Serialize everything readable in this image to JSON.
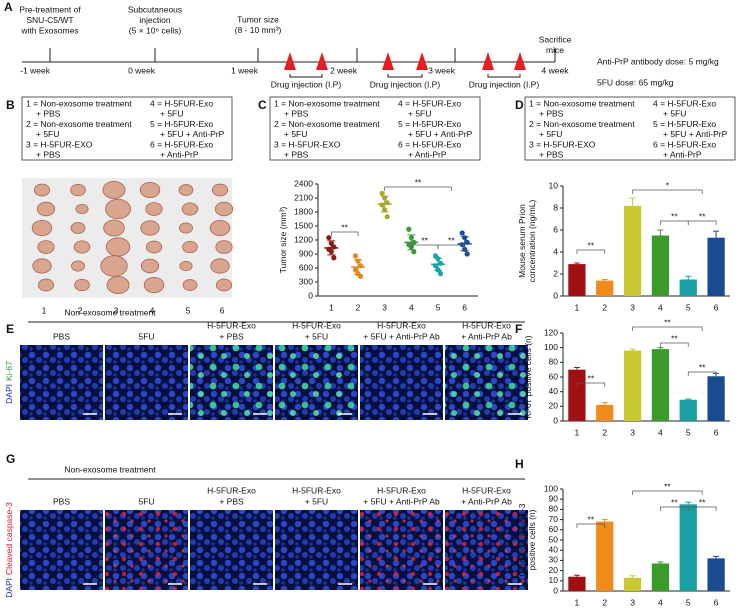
{
  "panel_labels": [
    "A",
    "B",
    "C",
    "D",
    "E",
    "F",
    "G",
    "H"
  ],
  "timeline": {
    "events": [
      [
        "Pre-treatment of",
        "SNU-C5/WT",
        "with Exosomes"
      ],
      [
        "Subcutaneous",
        "injection",
        "(5 × 10⁶ cells)"
      ],
      [
        "Tumor size",
        "(8 - 10 mm³)"
      ],
      [
        "Sacrifice",
        "mice"
      ]
    ],
    "weeks": [
      "-1 week",
      "0 week",
      "1 week",
      "2 week",
      "3 week",
      "4 week"
    ],
    "injection": "Drug injection (I.P)",
    "doses": [
      "Anti-PrP antibody dose: 5 mg/kg",
      "5FU dose: 65 mg/kg"
    ]
  },
  "groups": [
    {
      "name": "1 = Non-exosome treatment",
      "treatment": "+ PBS"
    },
    {
      "name": "2 = Non-exosome treatment",
      "treatment": "+ 5FU"
    },
    {
      "name": "3 = H-5FUR-EXO",
      "treatment": "+ PBS"
    },
    {
      "name": "4 = H-5FUR-Exo",
      "treatment": "+ 5FU"
    },
    {
      "name": "5 = H-5FUR-Exo",
      "treatment": "+ 5FU + Anti-PrP"
    },
    {
      "name": "6 = H-5FUR-Exo",
      "treatment": "+ Anti-PrP"
    }
  ],
  "photo_lanes": [
    "1",
    "2",
    "3",
    "4",
    "5",
    "6"
  ],
  "microscopy": {
    "group_header": "Non-exosome treatment",
    "columns": [
      [
        "PBS"
      ],
      [
        "5FU"
      ],
      [
        "H-5FUR-Exo",
        "+ PBS"
      ],
      [
        "H-5FUR-Exo",
        "+ 5FU"
      ],
      [
        "H-5FUR-Exo",
        "+ 5FU + Anti-PrP Ab"
      ],
      [
        "H-5FUR-Exo",
        "+ Anti-PrP Ab"
      ]
    ],
    "stain_E": [
      "DAPI",
      "Ki-67"
    ],
    "stain_G": [
      "DAPI",
      "Cleaved caspase-3"
    ]
  },
  "chart_data": [
    {
      "type": "dot_plot",
      "categories": [
        "1",
        "2",
        "3",
        "4",
        "5",
        "6"
      ],
      "points": [
        [
          1250,
          1130,
          1050,
          1000,
          950,
          820
        ],
        [
          860,
          750,
          650,
          560,
          480,
          420
        ],
        [
          2200,
          2100,
          2000,
          1950,
          1850,
          1700
        ],
        [
          1430,
          1250,
          1150,
          1100,
          1050,
          950
        ],
        [
          860,
          800,
          700,
          650,
          560,
          480
        ],
        [
          1350,
          1250,
          1150,
          1100,
          1000,
          900
        ]
      ],
      "values": [
        1030,
        620,
        1970,
        1150,
        680,
        1120
      ],
      "errors": [
        150,
        160,
        170,
        160,
        130,
        150
      ],
      "colors": [
        "#8b1a1a",
        "#e8871e",
        "#a8a830",
        "#3a9a3a",
        "#1aa5a5",
        "#1a4f9a"
      ],
      "ylim": [
        0,
        2400
      ],
      "yticks": [
        0,
        300,
        600,
        900,
        1200,
        1500,
        1800,
        2100,
        2400
      ],
      "y_label": [
        "Tumor size (mm³)"
      ],
      "significance": [
        "**",
        "**",
        "**",
        "**"
      ]
    },
    {
      "type": "bar",
      "categories": [
        "1",
        "2",
        "3",
        "4",
        "5",
        "6"
      ],
      "values": [
        2.9,
        1.4,
        8.2,
        5.5,
        1.5,
        5.3
      ],
      "errors": [
        0.1,
        0.1,
        0.7,
        0.5,
        0.3,
        0.6
      ],
      "colors": [
        "#a01010",
        "#f08a1a",
        "#c8c830",
        "#3a9a2a",
        "#1aa0a0",
        "#1a4a8f"
      ],
      "ylim": [
        0,
        10
      ],
      "yticks": [
        0,
        2,
        4,
        6,
        8,
        10
      ],
      "y_label": [
        "Mouse serum Prion",
        "concentration (ng/mL)"
      ],
      "significance": [
        "**",
        "*",
        "**",
        "**"
      ]
    },
    {
      "type": "bar",
      "categories": [
        "1",
        "2",
        "3",
        "4",
        "5",
        "6"
      ],
      "values": [
        70,
        22,
        96,
        98,
        29,
        61
      ],
      "errors": [
        3,
        3,
        2,
        2,
        1,
        4
      ],
      "colors": [
        "#a01010",
        "#f08a1a",
        "#c8c830",
        "#3a9a2a",
        "#1aa0a0",
        "#1a4a8f"
      ],
      "ylim": [
        0,
        120
      ],
      "yticks": [
        0,
        20,
        40,
        60,
        80,
        100,
        120
      ],
      "y_label": [
        "Ki-67 positive cells (n)"
      ],
      "significance": [
        "**",
        "**",
        "**",
        "**"
      ]
    },
    {
      "type": "bar",
      "categories": [
        "1",
        "2",
        "3",
        "4",
        "5",
        "6"
      ],
      "values": [
        14,
        68,
        13,
        27,
        85,
        32
      ],
      "errors": [
        1.5,
        2,
        2,
        1.5,
        2,
        2
      ],
      "colors": [
        "#a01010",
        "#f08a1a",
        "#c8c830",
        "#3a9a2a",
        "#1aa0a0",
        "#1a4a8f"
      ],
      "ylim": [
        0,
        100
      ],
      "yticks": [
        0,
        10,
        20,
        30,
        40,
        50,
        60,
        70,
        80,
        90,
        100
      ],
      "y_label": [
        "Cleaved caspase-3",
        "positive cells (n)"
      ],
      "significance": [
        "**",
        "**",
        "**",
        "**"
      ]
    }
  ]
}
